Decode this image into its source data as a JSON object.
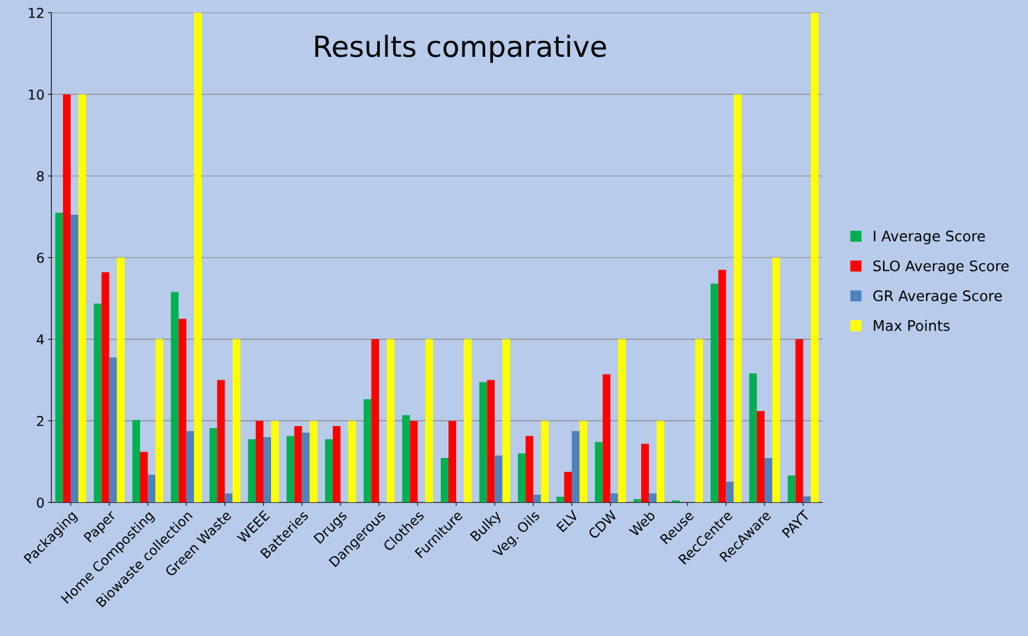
{
  "chart_data": {
    "type": "bar",
    "title": "Results comparative",
    "categories": [
      "Packaging",
      "Paper",
      "Home Composting",
      "Biowaste collection",
      "Green Waste",
      "WEEE",
      "Batteries",
      "Drugs",
      "Dangerous",
      "Clothes",
      "Furniture",
      "Bulky",
      "Veg. Oils",
      "ELV",
      "CDW",
      "Web",
      "Reuse",
      "RecCentre",
      "RecAware",
      "PAYT"
    ],
    "series": [
      {
        "name": "I Average Score",
        "color": "#00b050",
        "values": [
          7.1,
          4.87,
          2.02,
          5.16,
          1.82,
          1.55,
          1.63,
          1.55,
          2.53,
          2.14,
          1.09,
          2.95,
          1.2,
          0.14,
          1.48,
          0.08,
          0.05,
          5.36,
          3.16,
          0.66
        ]
      },
      {
        "name": "SLO Average Score",
        "color": "#ff0000",
        "values": [
          10,
          5.64,
          1.24,
          4.5,
          3,
          2,
          1.87,
          1.87,
          4,
          2,
          2,
          3,
          1.63,
          0.75,
          3.14,
          1.44,
          0,
          5.7,
          2.24,
          4
        ]
      },
      {
        "name": "GR Average Score",
        "color": "#4f81bd",
        "values": [
          7.05,
          3.55,
          0.68,
          1.75,
          0.22,
          1.6,
          1.71,
          0,
          0,
          0,
          0,
          1.15,
          0.19,
          1.75,
          0.22,
          0.22,
          0,
          0.51,
          1.09,
          0.15
        ]
      },
      {
        "name": "Max Points",
        "color": "#ffff00",
        "values": [
          10,
          6,
          4,
          12,
          4,
          2,
          2,
          2,
          4,
          4,
          4,
          4,
          2,
          2,
          4,
          2,
          4,
          10,
          6,
          12
        ]
      }
    ],
    "ylim": [
      0,
      12
    ],
    "yticks": [
      0,
      2,
      4,
      6,
      8,
      10,
      12
    ],
    "grid": "y",
    "legend": "right"
  }
}
